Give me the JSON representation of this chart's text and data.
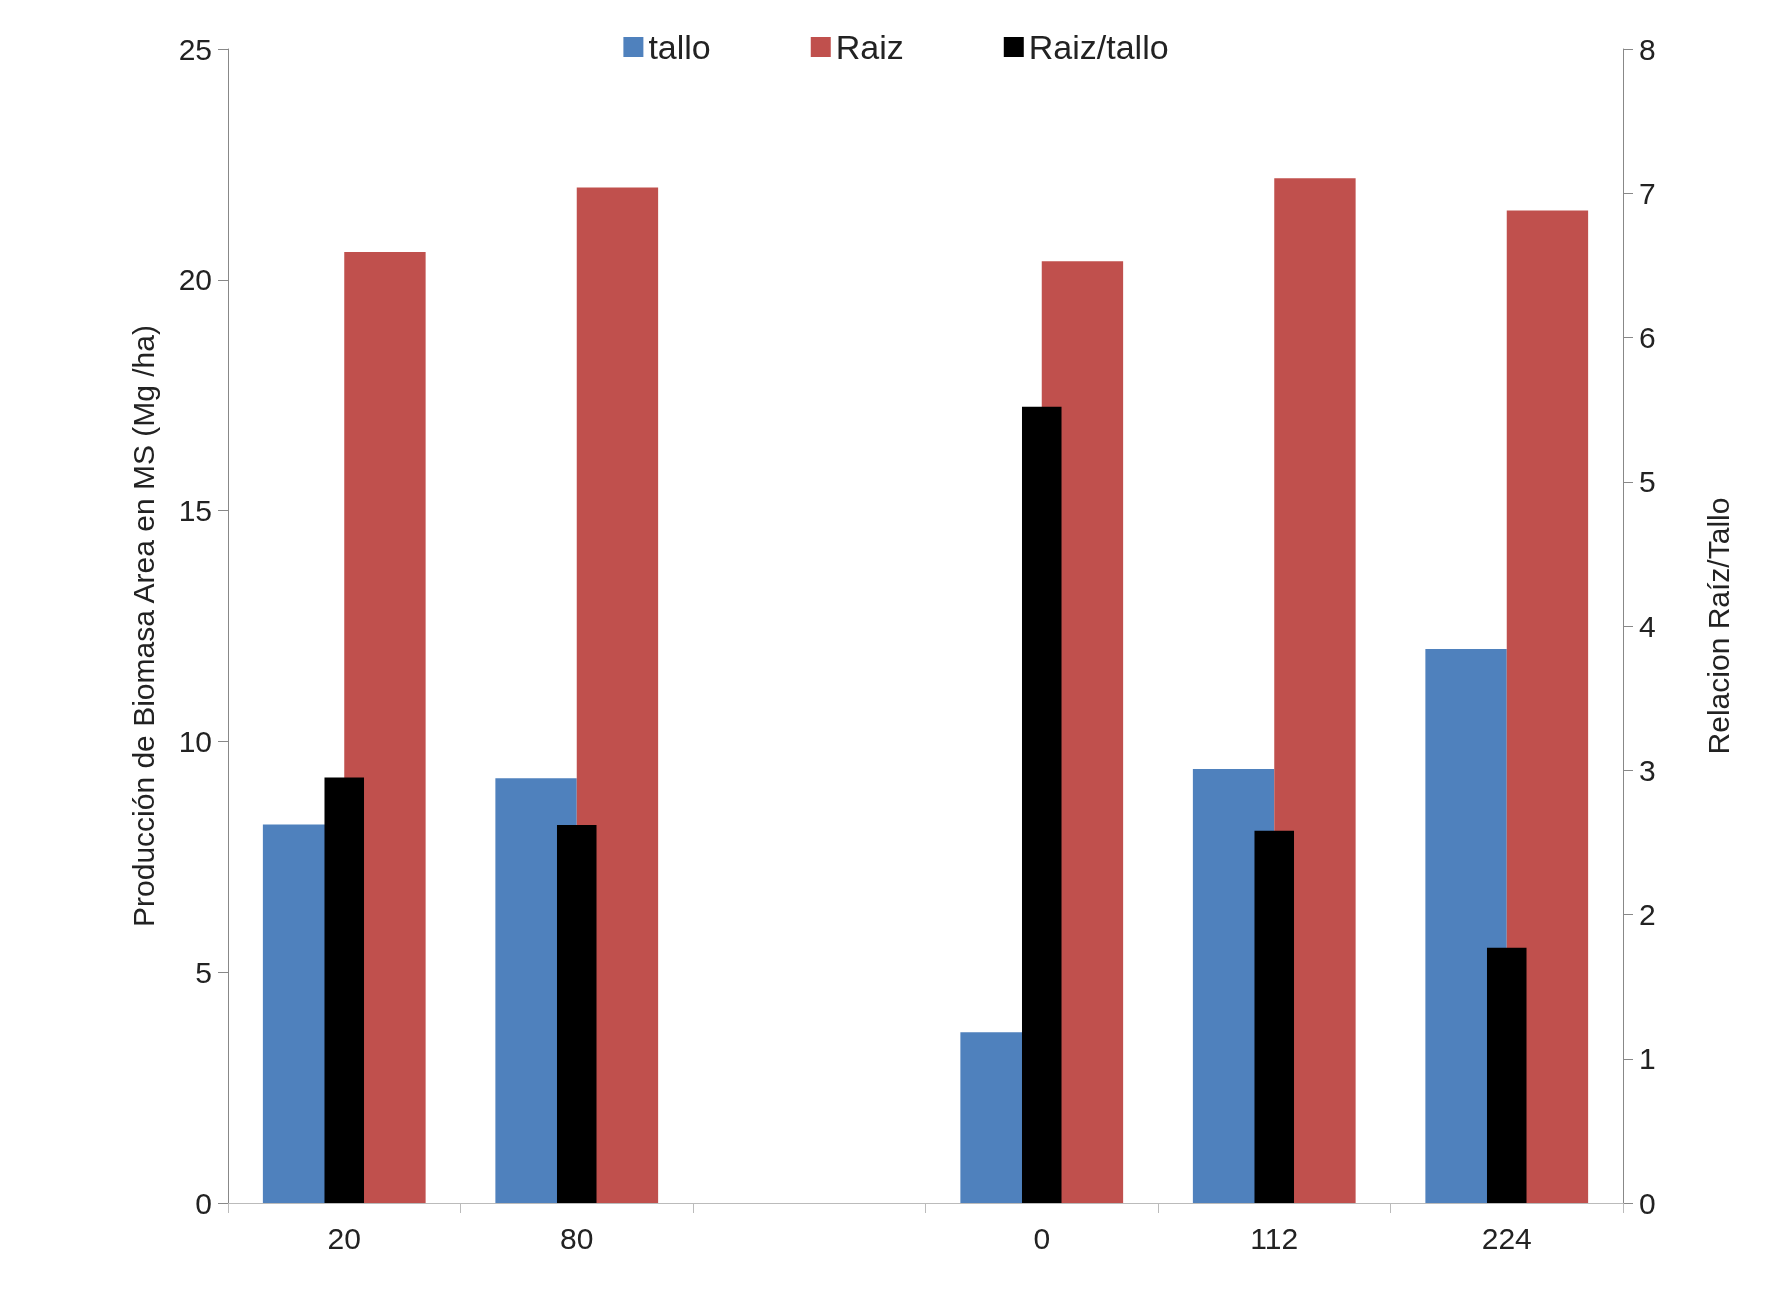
{
  "chart_data": {
    "type": "bar",
    "ylabel": "Producción de Biomasa Area en MS (Mg /ha)",
    "y2label": "Relacion Raíz/Tallo",
    "categories": [
      "20",
      "80",
      null,
      "0",
      "112",
      "224"
    ],
    "series": [
      {
        "name": "tallo",
        "color": "#4f81bd",
        "values": [
          8.2,
          9.2,
          null,
          3.7,
          9.4,
          12.0
        ]
      },
      {
        "name": "Raiz",
        "color": "#c0504d",
        "values": [
          20.6,
          22.0,
          null,
          20.4,
          22.2,
          21.5
        ]
      },
      {
        "name": "Raiz/tallo",
        "color": "#000000",
        "axis": "y2",
        "values": [
          2.95,
          2.62,
          null,
          5.52,
          2.58,
          1.77
        ]
      }
    ],
    "ylim": [
      0,
      25
    ],
    "yticks": [
      0,
      5,
      10,
      15,
      20,
      25
    ],
    "y2lim": [
      0,
      8
    ],
    "y2ticks": [
      0,
      1,
      2,
      3,
      4,
      5,
      6,
      7,
      8
    ],
    "grid": false,
    "legend": "top"
  }
}
